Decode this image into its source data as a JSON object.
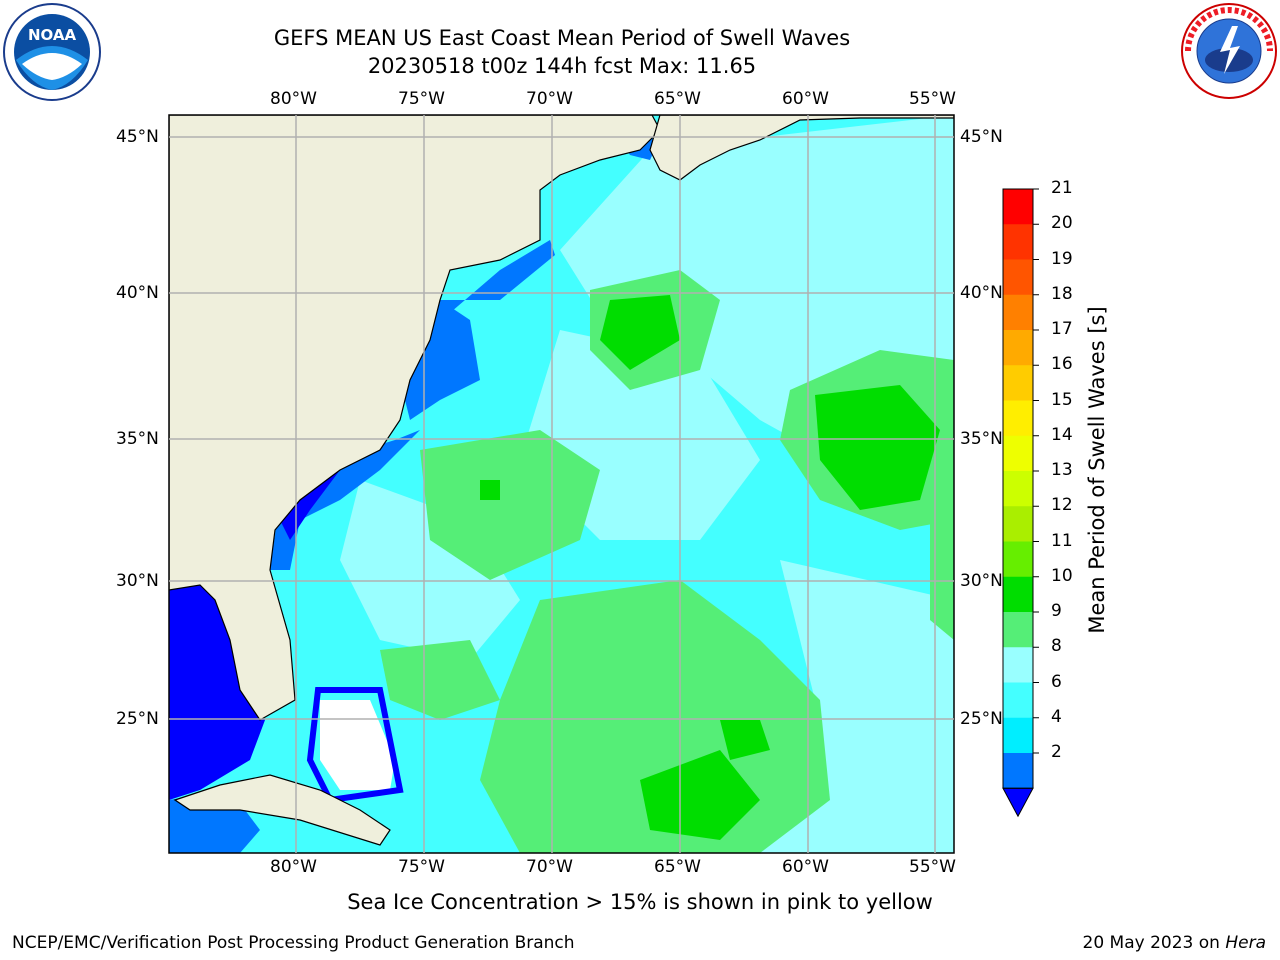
{
  "title_line1": "GEFS MEAN US East Coast Mean Period of Swell Waves",
  "title_line2": "20230518 t00z 144h fcst   Max: 11.65",
  "logos": {
    "left": "noaa-logo",
    "right": "national-weather-service-logo"
  },
  "lon_labels": [
    "80°W",
    "75°W",
    "70°W",
    "65°W",
    "60°W",
    "55°W"
  ],
  "lat_labels": [
    "45°N",
    "40°N",
    "35°N",
    "30°N",
    "25°N"
  ],
  "colorbar": {
    "title": "Mean Period of Swell Waves [s]",
    "ticks": [
      "21",
      "20",
      "19",
      "18",
      "17",
      "16",
      "15",
      "14",
      "13",
      "12",
      "11",
      "10",
      "9",
      "8",
      "6",
      "4",
      "2"
    ],
    "colors": [
      "#ff0000",
      "#ff3300",
      "#ff5500",
      "#ff8000",
      "#ffaa00",
      "#ffcc00",
      "#ffee00",
      "#eeff00",
      "#ccff00",
      "#aaee00",
      "#66ee00",
      "#00dd00",
      "#55ee77",
      "#99ffff",
      "#44ffff",
      "#00eeff",
      "#0077ff"
    ],
    "extend_color": "#0000ff"
  },
  "caption": "Sea Ice Concentration > 15% is shown in pink to yellow",
  "footer_left": "NCEP/EMC/Verification Post Processing Product Generation Branch",
  "footer_right_date": "20 May 2023 on ",
  "footer_right_host": "Hera"
}
